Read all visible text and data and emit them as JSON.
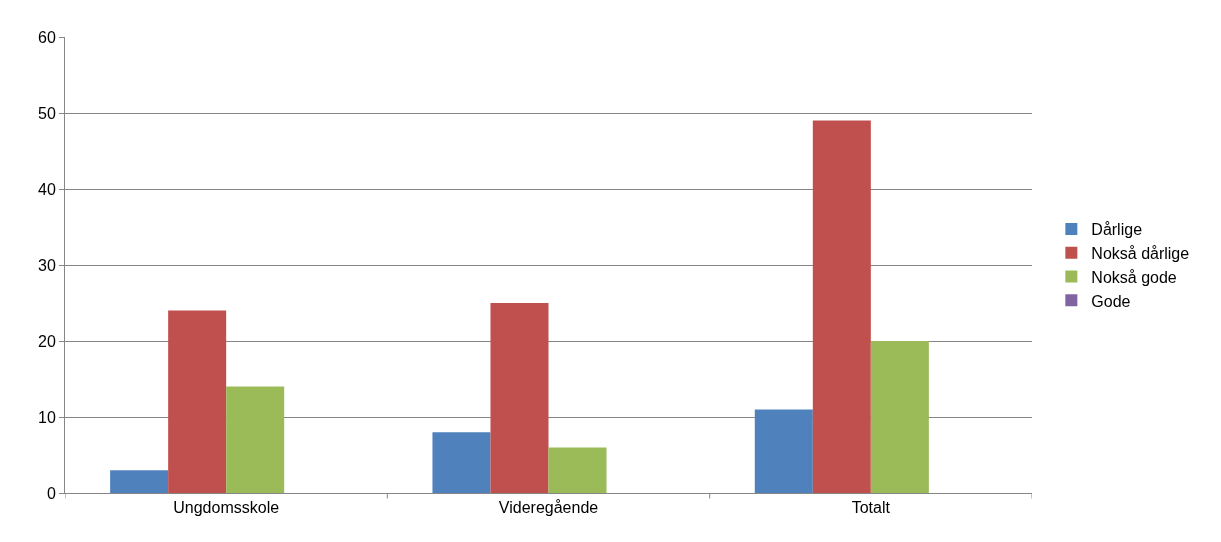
{
  "chart_data": {
    "type": "bar",
    "categories": [
      "Ungdomsskole",
      "Videregående",
      "Totalt"
    ],
    "series": [
      {
        "name": "Dårlige",
        "color": "#4f81bd",
        "values": [
          3,
          8,
          11
        ]
      },
      {
        "name": "Nokså dårlige",
        "color": "#c0504d",
        "values": [
          24,
          25,
          49
        ]
      },
      {
        "name": "Nokså gode",
        "color": "#9bbb59",
        "values": [
          14,
          6,
          20
        ]
      },
      {
        "name": "Gode",
        "color": "#8064a2",
        "values": [
          0,
          0,
          0
        ]
      }
    ],
    "ylim": [
      0,
      60
    ],
    "yticks": [
      0,
      10,
      20,
      30,
      40,
      50,
      60
    ],
    "grid": "y",
    "legend": "right"
  }
}
